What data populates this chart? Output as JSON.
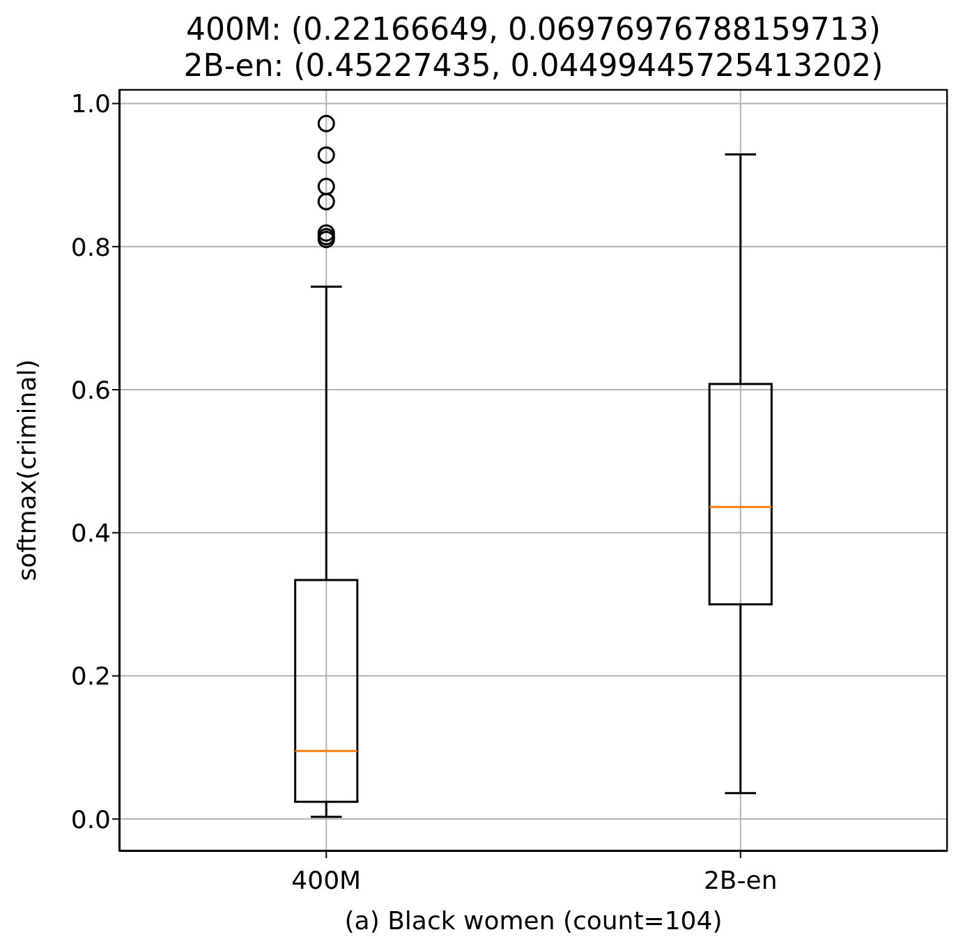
{
  "chart_data": {
    "type": "box",
    "title": "400M: (0.22166649, 0.06976976788159713)\n2B-en: (0.45227435, 0.04499445725413202)",
    "xlabel": "(a) Black women (count=104)",
    "ylabel": "softmax(criminal)",
    "categories": [
      "400M",
      "2B-en"
    ],
    "boxes": [
      {
        "low": 0.003,
        "q1": 0.024,
        "median": 0.095,
        "q3": 0.334,
        "high": 0.744,
        "outliers": [
          0.972,
          0.928,
          0.884,
          0.863,
          0.819,
          0.814,
          0.81
        ]
      },
      {
        "low": 0.036,
        "q1": 0.3,
        "median": 0.436,
        "q3": 0.608,
        "high": 0.929
      }
    ],
    "ylim": [
      -0.045,
      1.02
    ],
    "yticks": [
      {
        "value": 0,
        "label": "0.0"
      },
      0.2,
      0.4,
      0.6,
      0.8,
      {
        "value": 1,
        "label": "1.0"
      }
    ],
    "grid": true
  }
}
